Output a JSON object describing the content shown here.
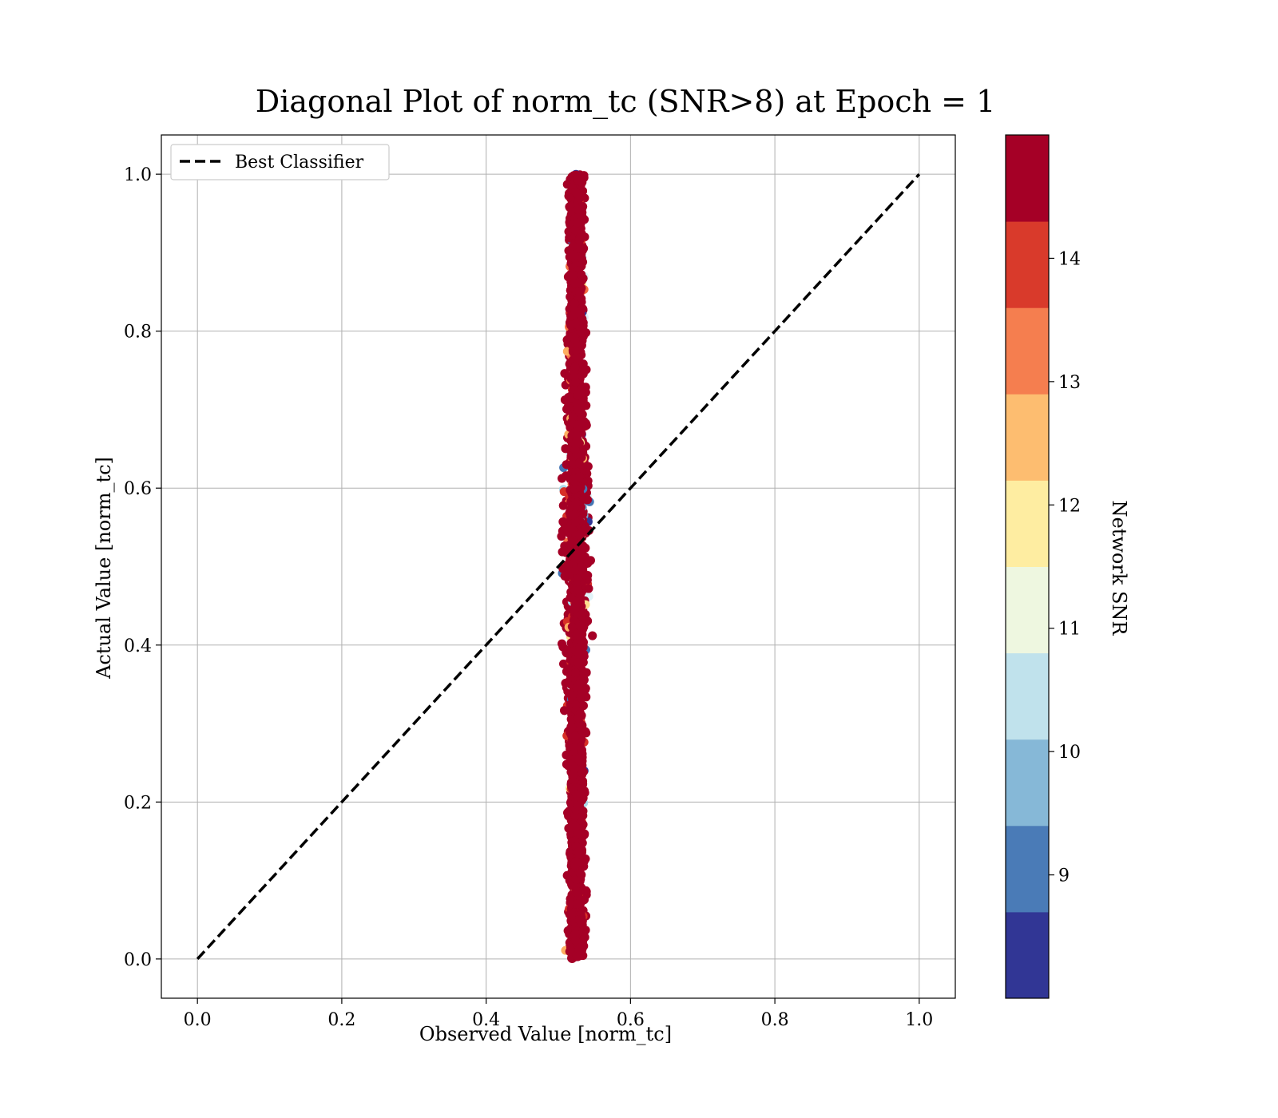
{
  "chart_data": {
    "type": "scatter",
    "title": "Diagonal Plot of norm_tc (SNR>8) at Epoch = 1",
    "xlabel": "Observed Value [norm_tc]",
    "ylabel": "Actual Value [norm_tc]",
    "xlim": [
      -0.05,
      1.05
    ],
    "ylim": [
      -0.05,
      1.05
    ],
    "xticks": [
      0.0,
      0.2,
      0.4,
      0.6,
      0.8,
      1.0
    ],
    "yticks": [
      0.0,
      0.2,
      0.4,
      0.6,
      0.8,
      1.0
    ],
    "xtick_labels": [
      "0.0",
      "0.2",
      "0.4",
      "0.6",
      "0.8",
      "1.0"
    ],
    "ytick_labels": [
      "0.0",
      "0.2",
      "0.4",
      "0.6",
      "0.8",
      "1.0"
    ],
    "grid": true,
    "legend_position": "top-left",
    "reference_line": {
      "name": "Best Classifier",
      "style": "dashed",
      "color": "#000000",
      "x": [
        0.0,
        1.0
      ],
      "y": [
        0.0,
        1.0
      ]
    },
    "scatter_summary": {
      "x_center": 0.525,
      "x_min": 0.49,
      "x_max": 0.57,
      "y_min": 0.0,
      "y_max": 1.0,
      "dominant_color": "#a50026"
    },
    "colorbar": {
      "label": "Network SNR",
      "range": [
        8,
        15
      ],
      "ticks": [
        9,
        10,
        11,
        12,
        13,
        14
      ],
      "tick_labels": [
        "9",
        "10",
        "11",
        "12",
        "13",
        "14"
      ],
      "colors": [
        "#313695",
        "#4575b4",
        "#74add1",
        "#abd9e9",
        "#e0f3f8",
        "#fee090",
        "#fdae61",
        "#f46d43",
        "#d73027",
        "#a50026"
      ],
      "bands": [
        "#313695",
        "#4a7bb7",
        "#86b8d7",
        "#c0e2ec",
        "#eef7e0",
        "#feeda1",
        "#fdbd70",
        "#f57e4f",
        "#d93a2b",
        "#a50026"
      ]
    }
  }
}
